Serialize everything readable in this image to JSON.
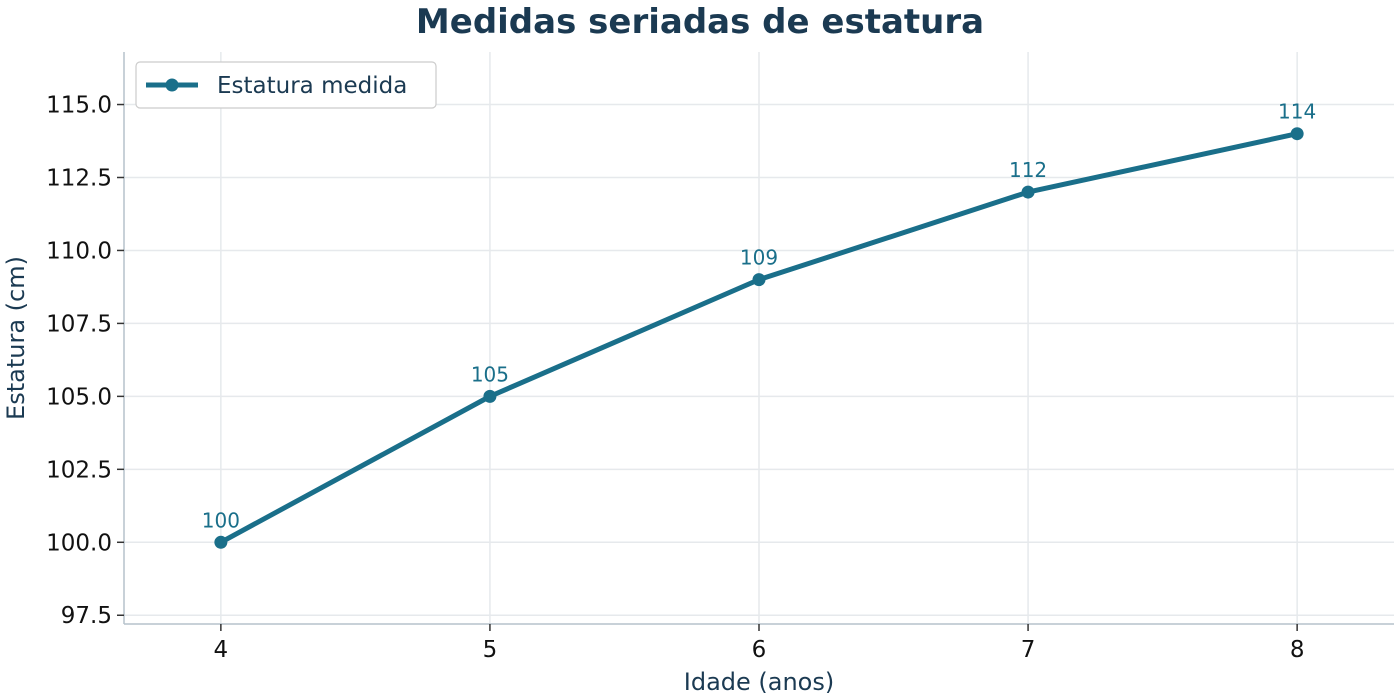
{
  "chart_data": {
    "type": "line",
    "title": "Medidas seriadas de estatura",
    "xlabel": "Idade (anos)",
    "ylabel": "Estatura (cm)",
    "x": [
      4,
      5,
      6,
      7,
      8
    ],
    "series": [
      {
        "name": "Estatura medida",
        "values": [
          100,
          105,
          109,
          112,
          114
        ],
        "color": "#1a6f8a"
      }
    ],
    "data_labels": [
      "100",
      "105",
      "109",
      "112",
      "114"
    ],
    "xlim": [
      3.64,
      8.36
    ],
    "ylim": [
      97.2,
      116.8
    ],
    "x_ticks": [
      4,
      5,
      6,
      7,
      8
    ],
    "x_tick_labels": [
      "4",
      "5",
      "6",
      "7",
      "8"
    ],
    "y_ticks": [
      97.5,
      100.0,
      102.5,
      105.0,
      107.5,
      110.0,
      112.5,
      115.0
    ],
    "y_tick_labels": [
      "97.5",
      "100.0",
      "102.5",
      "105.0",
      "107.5",
      "110.0",
      "112.5",
      "115.0"
    ],
    "grid": true,
    "legend_position": "top-left",
    "colors": {
      "line": "#1a6f8a",
      "title": "#1b3a52",
      "grid": "#e6e9ec",
      "spine": "#b6c2cc"
    }
  }
}
